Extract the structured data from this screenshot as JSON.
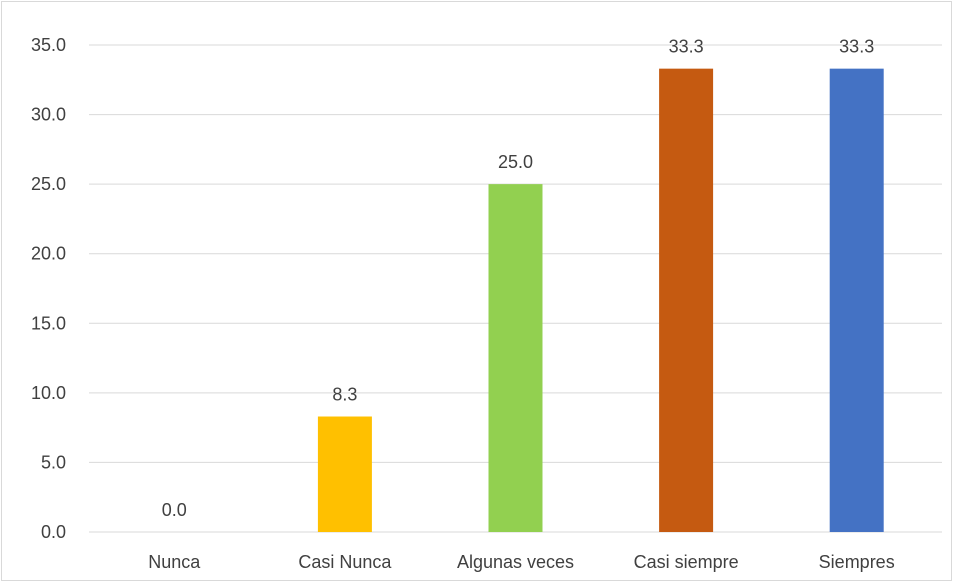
{
  "chart_data": {
    "type": "bar",
    "title": "",
    "xlabel": "",
    "ylabel": "",
    "categories": [
      "Nunca",
      "Casi Nunca",
      "Algunas veces",
      "Casi siempre",
      "Siempres"
    ],
    "values": [
      0.0,
      8.3,
      25.0,
      33.3,
      33.3
    ],
    "data_labels": [
      "0.0",
      "8.3",
      "25.0",
      "33.3",
      "33.3"
    ],
    "colors": [
      "#a5a5a5",
      "#ffc000",
      "#92d050",
      "#c55a11",
      "#4472c4"
    ],
    "ylim": [
      0,
      35
    ],
    "yticks": [
      "0.0",
      "5.0",
      "10.0",
      "15.0",
      "20.0",
      "25.0",
      "30.0",
      "35.0"
    ],
    "grid": true,
    "legend": "none"
  }
}
